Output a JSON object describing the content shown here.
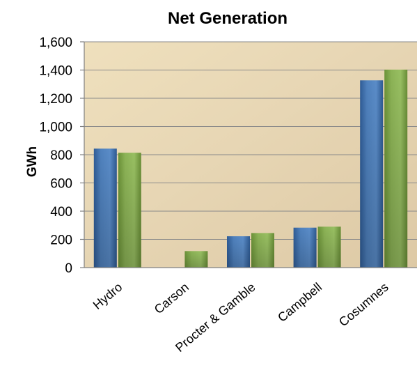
{
  "chart_data": {
    "type": "bar",
    "title": "Net Generation",
    "xlabel": "",
    "ylabel": "GWh",
    "ylim": [
      0,
      1600
    ],
    "yticks": [
      0,
      200,
      400,
      600,
      800,
      1000,
      1200,
      1400,
      1600
    ],
    "ytick_labels": [
      "0",
      "200",
      "400",
      "600",
      "800",
      "1,000",
      "1,200",
      "1,400",
      "1,600"
    ],
    "grid": true,
    "legend": "none",
    "categories": [
      "Hydro",
      "Carson",
      "Procter & Gamble",
      "Campbell",
      "Cosumnes"
    ],
    "series": [
      {
        "values": [
          843,
          0,
          222,
          283,
          1327
        ],
        "color": "#4f81bd"
      },
      {
        "values": [
          814,
          117,
          245,
          290,
          1403
        ],
        "color": "#8cb356"
      }
    ]
  }
}
